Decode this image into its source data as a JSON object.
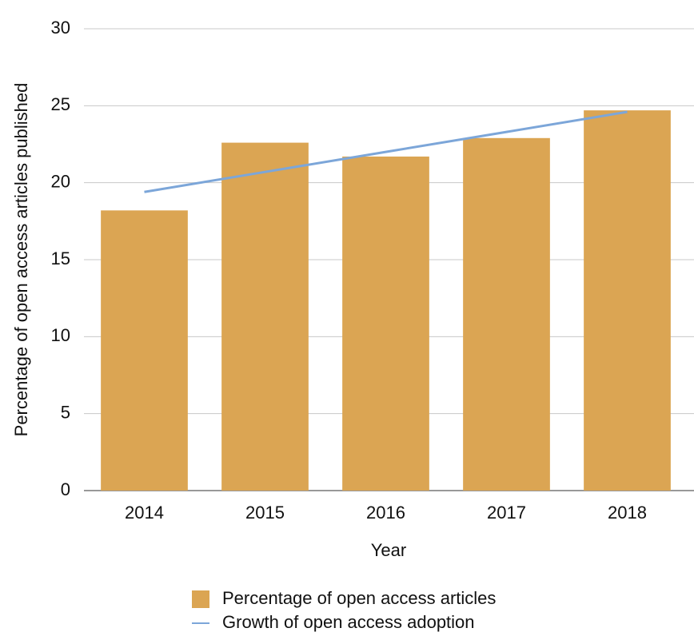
{
  "chart_data": {
    "type": "bar",
    "y_label": "Percentage of open access articles published",
    "x_label": "Year",
    "categories": [
      "2014",
      "2015",
      "2016",
      "2017",
      "2018"
    ],
    "series": [
      {
        "name": "Percentage of open access articles",
        "type": "bar",
        "color": "#dba553",
        "values": [
          18.2,
          22.6,
          21.7,
          22.9,
          24.7
        ]
      },
      {
        "name": "Growth of open access adoption",
        "type": "line",
        "color": "#7ca6d9",
        "values": [
          19.4,
          20.7,
          22.0,
          23.3,
          24.6
        ]
      }
    ],
    "ylim": [
      0,
      30
    ],
    "yticks": [
      0,
      5,
      10,
      15,
      20,
      25,
      30
    ],
    "grid": true,
    "legend": "bottom"
  }
}
